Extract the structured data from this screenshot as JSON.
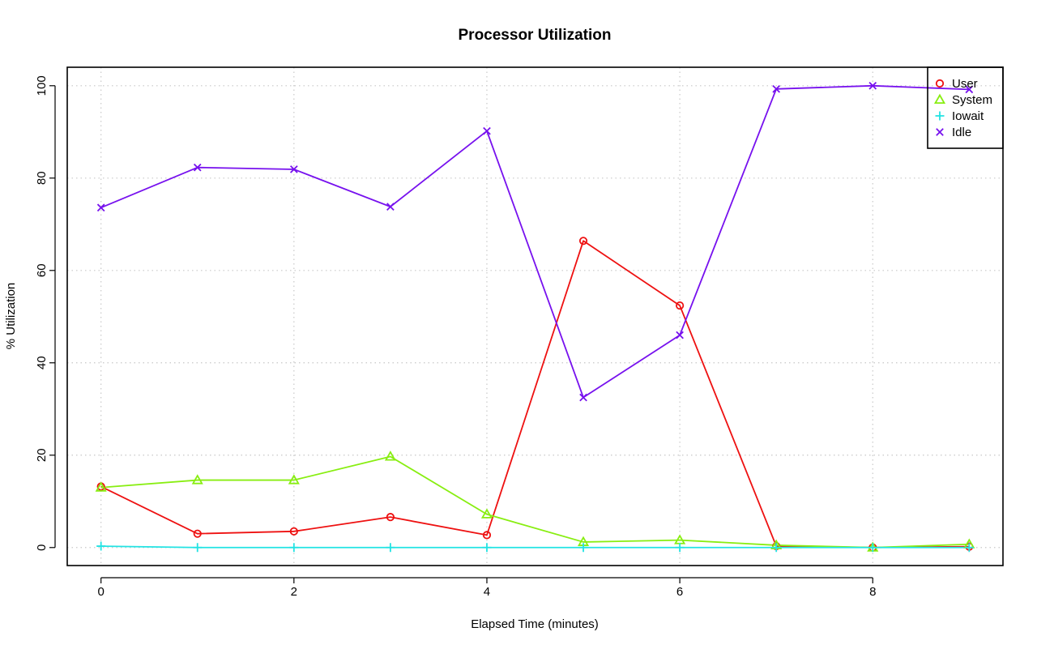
{
  "chart_data": {
    "type": "line",
    "title": "Processor Utilization",
    "xlabel": "Elapsed Time (minutes)",
    "ylabel": "% Utilization",
    "xlim": [
      -0.35,
      9.35
    ],
    "ylim": [
      -3.9,
      104
    ],
    "x_ticks": [
      0,
      2,
      4,
      6,
      8
    ],
    "y_ticks": [
      0,
      20,
      40,
      60,
      80,
      100
    ],
    "grid": true,
    "legend_position": "top-right",
    "x": [
      0,
      1,
      2,
      3,
      4,
      5,
      6,
      7,
      8,
      9
    ],
    "series": [
      {
        "name": "User",
        "color": "#ee1111",
        "marker": "circle",
        "values": [
          13.2,
          3.0,
          3.5,
          6.6,
          2.7,
          66.4,
          52.4,
          0.3,
          0.0,
          0.2
        ]
      },
      {
        "name": "System",
        "color": "#88ee11",
        "marker": "triangle",
        "values": [
          13.0,
          14.6,
          14.6,
          19.7,
          7.2,
          1.2,
          1.6,
          0.5,
          0.0,
          0.7
        ]
      },
      {
        "name": "Iowait",
        "color": "#22e3e3",
        "marker": "plus",
        "values": [
          0.3,
          0.0,
          0.0,
          0.0,
          0.0,
          0.0,
          0.0,
          0.0,
          0.0,
          0.0
        ]
      },
      {
        "name": "Idle",
        "color": "#7711ee",
        "marker": "cross",
        "values": [
          73.6,
          82.3,
          81.9,
          73.8,
          90.2,
          32.5,
          46.0,
          99.3,
          100.0,
          99.2
        ]
      }
    ]
  }
}
